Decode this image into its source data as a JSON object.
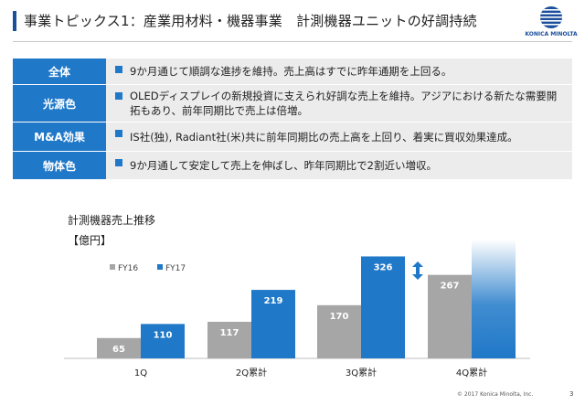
{
  "header": {
    "title": "事業トピックス1：産業用材料・機器事業　計測機器ユニットの好調持続",
    "logo_text": "KONICA MINOLTA"
  },
  "topics": [
    {
      "label": "全体",
      "text": "9か月通じて順調な進捗を維持。売上高はすでに昨年通期を上回る。"
    },
    {
      "label": "光源色",
      "text": "OLEDディスプレイの新規投資に支えられ好調な売上を維持。アジアにおける新たな需要開拓もあり、前年同期比で売上は倍増。"
    },
    {
      "label": "M&A効果",
      "text": "IS社(独), Radiant社(米)共に前年同期比の売上高を上回り、着実に買収効果達成。"
    },
    {
      "label": "物体色",
      "text": "9か月通して安定して売上を伸ばし、昨年同期比で2割近い増収。"
    }
  ],
  "chart_data": {
    "type": "bar",
    "title": "計測機器売上推移",
    "unit": "【億円】",
    "categories": [
      "1Q",
      "2Q累計",
      "3Q累計",
      "4Q累計"
    ],
    "series": [
      {
        "name": "FY16",
        "values": [
          65,
          117,
          170,
          267
        ],
        "color": "#a6a6a6"
      },
      {
        "name": "FY17",
        "values": [
          110,
          219,
          326,
          null
        ],
        "color": "#1f78c8"
      }
    ],
    "ylim": [
      0,
      380
    ],
    "legend": "top-left",
    "projection_category": "4Q累計"
  },
  "footer": {
    "copyright": "© 2017 Konica Minolta, Inc.",
    "page": "3"
  }
}
